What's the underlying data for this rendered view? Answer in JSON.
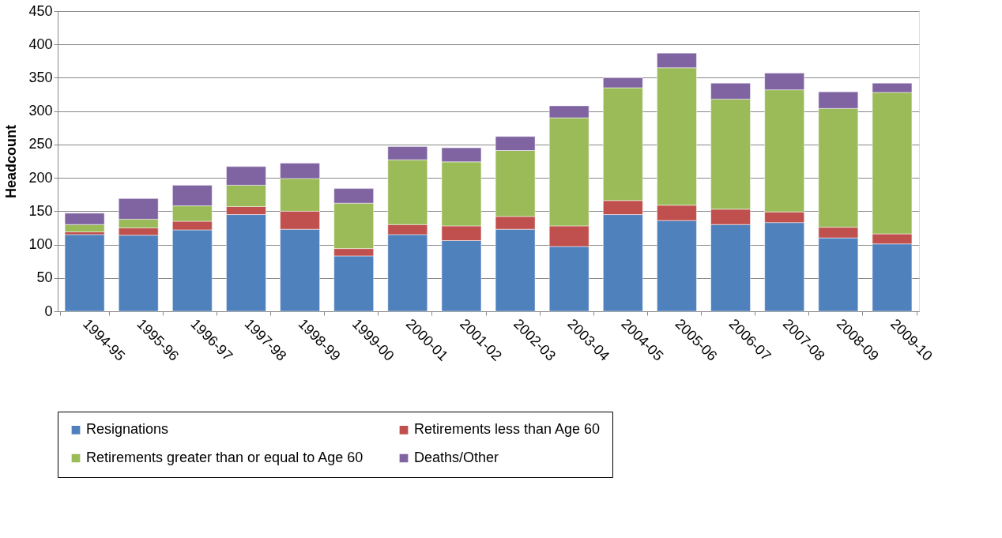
{
  "chart_data": {
    "type": "bar",
    "stacked": true,
    "ylabel": "Headcount",
    "categories": [
      "1994-95",
      "1995-96",
      "1996-97",
      "1997-98",
      "1998-99",
      "1999-00",
      "2000-01",
      "2001-02",
      "2002-03",
      "2003-04",
      "2004-05",
      "2005-06",
      "2006-07",
      "2007-08",
      "2008-09",
      "2009-10"
    ],
    "series": [
      {
        "name": "Resignations",
        "color": "#4f81bd",
        "values": [
          115,
          114,
          122,
          145,
          123,
          83,
          115,
          106,
          123,
          97,
          145,
          136,
          130,
          133,
          110,
          101
        ]
      },
      {
        "name": "Retirements less than Age 60",
        "color": "#c0504d",
        "values": [
          4,
          11,
          13,
          12,
          27,
          11,
          15,
          22,
          19,
          31,
          21,
          23,
          23,
          16,
          16,
          15
        ]
      },
      {
        "name": "Retirements greater than or equal to Age 60",
        "color": "#9bbb59",
        "values": [
          11,
          13,
          23,
          32,
          49,
          68,
          97,
          96,
          99,
          162,
          169,
          206,
          165,
          183,
          178,
          212
        ]
      },
      {
        "name": "Deaths/Other",
        "color": "#8064a2",
        "values": [
          17,
          31,
          31,
          28,
          23,
          22,
          20,
          21,
          21,
          18,
          15,
          22,
          24,
          25,
          25,
          14
        ]
      }
    ],
    "ylim": [
      0,
      450
    ],
    "yticks": [
      0,
      50,
      100,
      150,
      200,
      250,
      300,
      350,
      400,
      450
    ],
    "grid": "y",
    "legend": "bottom"
  }
}
